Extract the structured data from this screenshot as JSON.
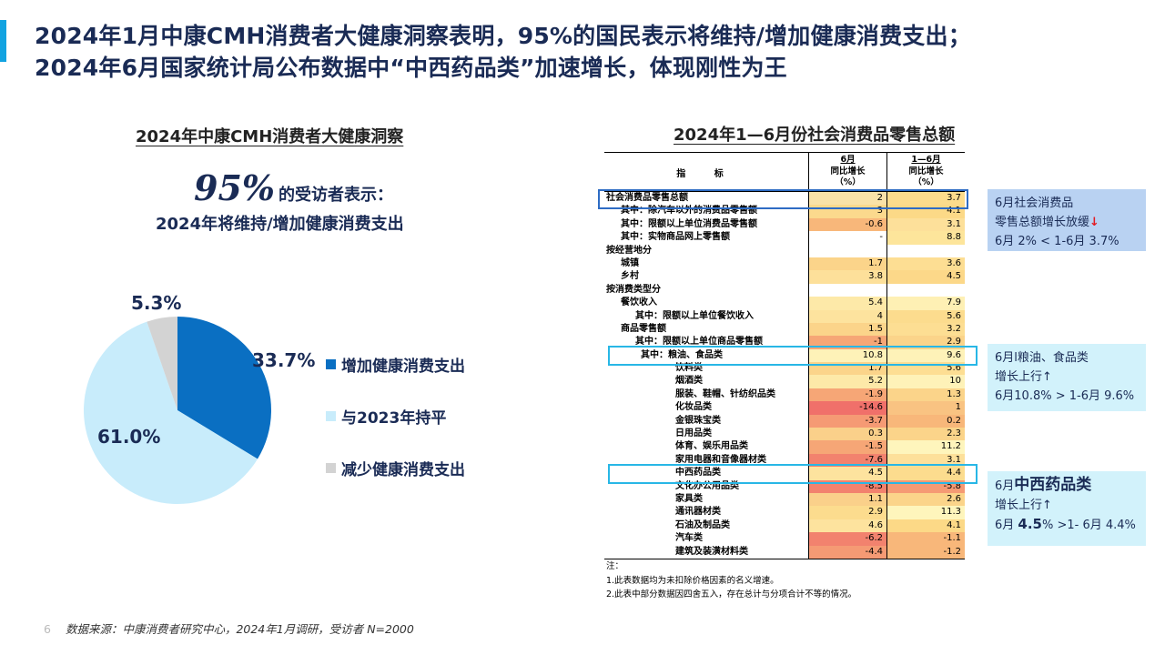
{
  "header": {
    "title_line1": "2024年1月中康CMH消费者大健康洞察表明，95%的国民表示将维持/增加健康消费支出；",
    "title_line2": "2024年6月国家统计局公布数据中“中西药品类”加速增长，体现刚性为王"
  },
  "left": {
    "heading": "2024年中康CMH消费者大健康洞察",
    "big_pct": "95%",
    "pct_text": "的受访者表示：",
    "pct_text2": "2024年将维持/增加健康消费支出"
  },
  "chart_data": [
    {
      "type": "pie",
      "categories": [
        "增加健康消费支出",
        "与2023年持平",
        "减少健康消费支出"
      ],
      "values": [
        33.7,
        61.0,
        5.3
      ],
      "data_labels": [
        "33.7%",
        "61.0%",
        "5.3%"
      ],
      "colors": [
        "#0a6fc2",
        "#c8ecfb",
        "#d3d3d3"
      ],
      "legend_position": "right"
    },
    {
      "type": "table",
      "title": "2024年1—6月份社会消费品零售总额",
      "indicator_header": "指 标",
      "columns": [
        {
          "line1": "6月",
          "line2": "同比增长",
          "line3": "（%）"
        },
        {
          "line1": "1—6月",
          "line2": "同比增长",
          "line3": "（%）"
        }
      ],
      "rows": [
        {
          "name": "社会消费品零售总额",
          "indent": 0,
          "jun": "2",
          "h1": "3.7",
          "c1": "#f9e2a8",
          "c2": "#fcdc8c"
        },
        {
          "name": "其中：除汽车以外的消费品零售额",
          "indent": 1,
          "jun": "3",
          "h1": "4.1",
          "c1": "#fbd98d",
          "c2": "#fcd987"
        },
        {
          "name": "其中：限额以上单位消费品零售额",
          "indent": 1,
          "jun": "-0.6",
          "h1": "3.1",
          "c1": "#f8b77a",
          "c2": "#fde09a"
        },
        {
          "name": "其中：实物商品网上零售额",
          "indent": 1,
          "jun": "-",
          "h1": "8.8",
          "c1": "#ffffff",
          "c2": "#fde59b"
        },
        {
          "name": "按经营地分",
          "indent": 0,
          "jun": "",
          "h1": "",
          "c1": "#ffffff",
          "c2": "#ffffff"
        },
        {
          "name": "城镇",
          "indent": 1,
          "jun": "1.7",
          "h1": "3.6",
          "c1": "#fbd48a",
          "c2": "#fdde93"
        },
        {
          "name": "乡村",
          "indent": 1,
          "jun": "3.8",
          "h1": "4.5",
          "c1": "#fde09a",
          "c2": "#fcd889"
        },
        {
          "name": "按消费类型分",
          "indent": 0,
          "jun": "",
          "h1": "",
          "c1": "#ffffff",
          "c2": "#ffffff"
        },
        {
          "name": "餐饮收入",
          "indent": 1,
          "jun": "5.4",
          "h1": "7.9",
          "c1": "#fde9a8",
          "c2": "#fef0b4"
        },
        {
          "name": "其中：限额以上单位餐饮收入",
          "indent": 2,
          "jun": "4",
          "h1": "5.6",
          "c1": "#fde39e",
          "c2": "#fcdc8e"
        },
        {
          "name": "商品零售额",
          "indent": 1,
          "jun": "1.5",
          "h1": "3.2",
          "c1": "#fbd48a",
          "c2": "#fdde93"
        },
        {
          "name": "其中：限额以上单位商品零售额",
          "indent": 2,
          "jun": "-1",
          "h1": "2.9",
          "c1": "#f6a676",
          "c2": "#fbd48a"
        },
        {
          "name": "其中：粮油、食品类",
          "indent": 3,
          "jun": "10.8",
          "h1": "9.6",
          "c1": "#fef2b8",
          "c2": "#fef2b8"
        },
        {
          "name": "饮料类",
          "indent": 4,
          "jun": "1.7",
          "h1": "5.6",
          "c1": "#fbd48a",
          "c2": "#fdde93"
        },
        {
          "name": "烟酒类",
          "indent": 4,
          "jun": "5.2",
          "h1": "10",
          "c1": "#fde9a8",
          "c2": "#fef2b8"
        },
        {
          "name": "服装、鞋帽、针纺织品类",
          "indent": 4,
          "jun": "-1.9",
          "h1": "1.3",
          "c1": "#f6a676",
          "c2": "#fbd48a"
        },
        {
          "name": "化妆品类",
          "indent": 4,
          "jun": "-14.6",
          "h1": "1",
          "c1": "#f0706a",
          "c2": "#f9c382"
        },
        {
          "name": "金银珠宝类",
          "indent": 4,
          "jun": "-3.7",
          "h1": "0.2",
          "c1": "#f59a74",
          "c2": "#f8b77a"
        },
        {
          "name": "日用品类",
          "indent": 4,
          "jun": "0.3",
          "h1": "2.3",
          "c1": "#fad08a",
          "c2": "#fbd48a"
        },
        {
          "name": "体育、娱乐用品类",
          "indent": 4,
          "jun": "-1.5",
          "h1": "11.2",
          "c1": "#f6a676",
          "c2": "#fef5bc"
        },
        {
          "name": "家用电器和音像器材类",
          "indent": 4,
          "jun": "-7.6",
          "h1": "3.1",
          "c1": "#f2826e",
          "c2": "#fde09a"
        },
        {
          "name": "中西药品类",
          "indent": 4,
          "jun": "4.5",
          "h1": "4.4",
          "c1": "#fde39e",
          "c2": "#fcdc8e"
        },
        {
          "name": "文化办公用品类",
          "indent": 4,
          "jun": "-8.5",
          "h1": "-5.8",
          "c1": "#f2826e",
          "c2": "#f59a74"
        },
        {
          "name": "家具类",
          "indent": 4,
          "jun": "1.1",
          "h1": "2.6",
          "c1": "#fad08a",
          "c2": "#fbd48a"
        },
        {
          "name": "通讯器材类",
          "indent": 4,
          "jun": "2.9",
          "h1": "11.3",
          "c1": "#fcdc8e",
          "c2": "#fef5bc"
        },
        {
          "name": "石油及制品类",
          "indent": 4,
          "jun": "4.6",
          "h1": "4.1",
          "c1": "#fde39e",
          "c2": "#fcd987"
        },
        {
          "name": "汽车类",
          "indent": 4,
          "jun": "-6.2",
          "h1": "-1.1",
          "c1": "#f2826e",
          "c2": "#f8b77a"
        },
        {
          "name": "建筑及装潢材料类",
          "indent": 4,
          "jun": "-4.4",
          "h1": "-1.2",
          "c1": "#f59a74",
          "c2": "#f8b77a"
        }
      ],
      "notes": [
        "注：",
        "1.此表数据均为未扣除价格因素的名义增速。",
        "2.此表中部分数据因四舍五入，存在总计与分项合计不等的情况。"
      ]
    }
  ],
  "callouts": {
    "c1": {
      "line1": "6月社会消费品",
      "line2": "零售总额增长放缓",
      "arrow": "↓",
      "line3": "6月 2% < 1-6月 3.7%"
    },
    "c2": {
      "line1": "6月l粮油、食品类",
      "line2": "增长上行↑",
      "line3": "6月10.8% > 1-6月 9.6%"
    },
    "c3": {
      "pre": "6月",
      "big": "中西药品类",
      "line2": "增长上行↑",
      "l3a": "6月 ",
      "l3b": "4.5",
      "l3c": "% >1- 6月 4.4%"
    }
  },
  "footer": {
    "page": "6",
    "source": "数据来源：中康消费者研究中心，2024年1月调研，受访者 N=2000"
  }
}
